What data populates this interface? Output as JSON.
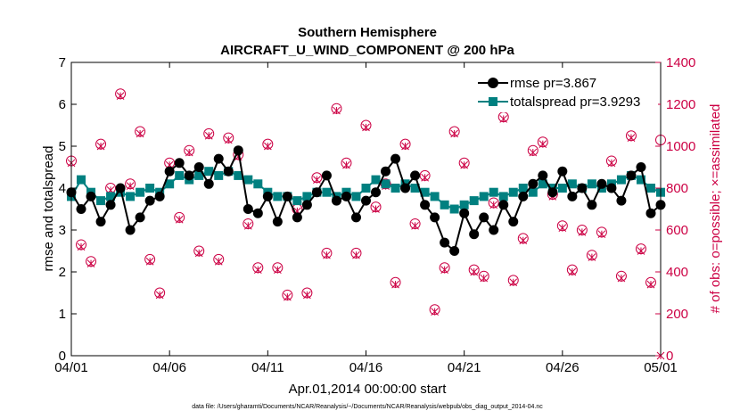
{
  "chart_data": {
    "type": "line",
    "title": "Southern Hemisphere",
    "subtitle": "AIRCRAFT_U_WIND_COMPONENT @ 200 hPa",
    "xlabel": "Apr.01,2014 00:00:00 start",
    "ylabel_left": "rmse and totalspread",
    "ylabel_right": "# of obs: o=possible; ×=assimilated",
    "x_tick_labels": [
      "04/01",
      "04/06",
      "04/11",
      "04/16",
      "04/21",
      "04/26",
      "05/01"
    ],
    "xlim": [
      0,
      30
    ],
    "ylim_left": [
      0,
      7
    ],
    "ylim_right": [
      0,
      1400
    ],
    "y_ticks_left": [
      "0",
      "1",
      "2",
      "3",
      "4",
      "5",
      "6",
      "7"
    ],
    "y_ticks_right": [
      "0",
      "200",
      "400",
      "600",
      "800",
      "1000",
      "1200",
      "1400"
    ],
    "grid": false,
    "legend_position": "top-right",
    "series": [
      {
        "name": "rmse",
        "legend_label": "rmse pr=3.867",
        "color": "#000000",
        "marker": "circle",
        "x": [
          0,
          0.5,
          1,
          1.5,
          2,
          2.5,
          3,
          3.5,
          4,
          4.5,
          5,
          5.5,
          6,
          6.5,
          7,
          7.5,
          8,
          8.5,
          9,
          9.5,
          10,
          10.5,
          11,
          11.5,
          12,
          12.5,
          13,
          13.5,
          14,
          14.5,
          15,
          15.5,
          16,
          16.5,
          17,
          17.5,
          18,
          18.5,
          19,
          19.5,
          20,
          20.5,
          21,
          21.5,
          22,
          22.5,
          23,
          23.5,
          24,
          24.5,
          25,
          25.5,
          26,
          26.5,
          27,
          27.5,
          28,
          28.5,
          29,
          29.5,
          30
        ],
        "values": [
          3.9,
          3.5,
          3.8,
          3.2,
          3.6,
          4.0,
          3.0,
          3.3,
          3.7,
          3.8,
          4.4,
          4.6,
          4.3,
          4.5,
          4.1,
          4.7,
          4.4,
          4.9,
          3.5,
          3.4,
          3.8,
          3.2,
          3.8,
          3.3,
          3.6,
          3.9,
          4.3,
          3.7,
          3.8,
          3.3,
          3.7,
          3.9,
          4.4,
          4.7,
          4.0,
          4.3,
          3.6,
          3.3,
          2.7,
          2.5,
          3.4,
          2.9,
          3.3,
          3.0,
          3.6,
          3.2,
          3.8,
          4.1,
          4.3,
          3.9,
          4.4,
          3.8,
          4.0,
          3.6,
          4.1,
          4.0,
          3.7,
          4.3,
          4.5,
          3.4,
          3.6
        ]
      },
      {
        "name": "totalspread",
        "legend_label": "totalspread pr=3.9293",
        "color": "#008080",
        "marker": "square",
        "x": [
          0,
          0.5,
          1,
          1.5,
          2,
          2.5,
          3,
          3.5,
          4,
          4.5,
          5,
          5.5,
          6,
          6.5,
          7,
          7.5,
          8,
          8.5,
          9,
          9.5,
          10,
          10.5,
          11,
          11.5,
          12,
          12.5,
          13,
          13.5,
          14,
          14.5,
          15,
          15.5,
          16,
          16.5,
          17,
          17.5,
          18,
          18.5,
          19,
          19.5,
          20,
          20.5,
          21,
          21.5,
          22,
          22.5,
          23,
          23.5,
          24,
          24.5,
          25,
          25.5,
          26,
          26.5,
          27,
          27.5,
          28,
          28.5,
          29,
          29.5,
          30
        ],
        "values": [
          3.8,
          4.2,
          3.9,
          3.7,
          3.8,
          3.9,
          3.8,
          3.9,
          4.0,
          3.9,
          4.1,
          4.3,
          4.2,
          4.3,
          4.4,
          4.3,
          4.4,
          4.3,
          4.2,
          4.1,
          3.9,
          3.8,
          3.8,
          3.7,
          3.8,
          3.9,
          3.9,
          3.8,
          3.9,
          3.8,
          4.0,
          4.2,
          4.1,
          4.0,
          4.1,
          4.0,
          3.9,
          3.8,
          3.6,
          3.5,
          3.6,
          3.7,
          3.8,
          3.9,
          3.8,
          3.9,
          4.0,
          3.9,
          4.1,
          4.0,
          4.0,
          4.1,
          4.0,
          4.1,
          4.0,
          4.1,
          4.2,
          4.3,
          4.2,
          4.0,
          3.9
        ]
      },
      {
        "name": "possible",
        "color": "#cc0044",
        "marker": "circle-open",
        "axis": "right",
        "x": [
          0,
          0.5,
          1,
          1.5,
          2,
          2.5,
          3,
          3.5,
          4,
          4.5,
          5,
          5.5,
          6,
          6.5,
          7,
          7.5,
          8,
          8.5,
          9,
          9.5,
          10,
          10.5,
          11,
          11.5,
          12,
          12.5,
          13,
          13.5,
          14,
          14.5,
          15,
          15.5,
          16,
          16.5,
          17,
          17.5,
          18,
          18.5,
          19,
          19.5,
          20,
          20.5,
          21,
          21.5,
          22,
          22.5,
          23,
          23.5,
          24,
          24.5,
          25,
          25.5,
          26,
          26.5,
          27,
          27.5,
          28,
          28.5,
          29,
          29.5,
          30
        ],
        "values": [
          930,
          530,
          450,
          1010,
          800,
          1250,
          820,
          1070,
          460,
          300,
          920,
          660,
          980,
          500,
          1060,
          460,
          1040,
          960,
          630,
          420,
          1010,
          420,
          290,
          700,
          300,
          850,
          490,
          1180,
          920,
          490,
          1100,
          710,
          820,
          350,
          1010,
          630,
          860,
          220,
          420,
          1070,
          920,
          410,
          380,
          730,
          1140,
          360,
          560,
          980,
          1020,
          770,
          620,
          410,
          600,
          480,
          590,
          930,
          380,
          1050,
          510,
          350,
          1030
        ]
      },
      {
        "name": "assimilated",
        "color": "#cc0044",
        "marker": "x",
        "axis": "right",
        "x": [
          0,
          0.5,
          1,
          1.5,
          2,
          2.5,
          3,
          3.5,
          4,
          4.5,
          5,
          5.5,
          6,
          6.5,
          7,
          7.5,
          8,
          8.5,
          9,
          9.5,
          10,
          10.5,
          11,
          11.5,
          12,
          12.5,
          13,
          13.5,
          14,
          14.5,
          15,
          15.5,
          16,
          16.5,
          17,
          17.5,
          18,
          18.5,
          19,
          19.5,
          20,
          20.5,
          21,
          21.5,
          22,
          22.5,
          23,
          23.5,
          24,
          24.5,
          25,
          25.5,
          26,
          26.5,
          27,
          27.5,
          28,
          28.5,
          29,
          29.5,
          30
        ],
        "values": [
          920,
          520,
          440,
          1000,
          790,
          1240,
          810,
          1060,
          450,
          290,
          910,
          650,
          970,
          490,
          1050,
          450,
          1030,
          950,
          620,
          410,
          1000,
          410,
          280,
          690,
          290,
          840,
          480,
          1170,
          910,
          480,
          1090,
          700,
          810,
          340,
          1000,
          620,
          850,
          210,
          410,
          1060,
          910,
          400,
          370,
          720,
          1130,
          350,
          550,
          970,
          1010,
          760,
          610,
          400,
          590,
          470,
          580,
          920,
          370,
          1040,
          500,
          340,
          0
        ]
      }
    ],
    "footer": "data file: /Users/gharamti/Documents/NCAR/Reanalysis/~/Documents/NCAR/Reanalysis/webpub/obs_diag_output_2014-04.nc"
  }
}
